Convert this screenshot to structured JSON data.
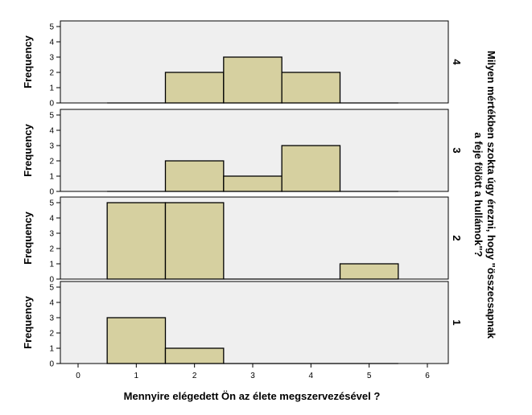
{
  "chart_data": {
    "type": "bar",
    "subtype": "faceted-histogram",
    "xlabel": "Mennyire elégedett Ön az élete megszervezésével ?",
    "ylabel": "Frequency",
    "facet_label": "Milyen mértékben szokta úgy érezni, hogy \"összecsapnak a feje fölött a hullámok\"?",
    "xlim": [
      0,
      6
    ],
    "xticks": [
      0,
      1,
      2,
      3,
      4,
      5,
      6
    ],
    "ylim": [
      0,
      5
    ],
    "yticks": [
      0,
      1,
      2,
      3,
      4,
      5
    ],
    "bins": [
      1,
      2,
      3,
      4,
      5
    ],
    "bin_width": 1,
    "bar_color": "#d6d0a0",
    "panel_background": "#efefef",
    "panels": [
      {
        "facet": "4",
        "values": [
          0,
          2,
          3,
          2,
          0
        ]
      },
      {
        "facet": "3",
        "values": [
          0,
          2,
          1,
          3,
          0
        ]
      },
      {
        "facet": "2",
        "values": [
          5,
          5,
          0,
          0,
          1
        ]
      },
      {
        "facet": "1",
        "values": [
          3,
          1,
          0,
          0,
          0
        ]
      }
    ]
  }
}
